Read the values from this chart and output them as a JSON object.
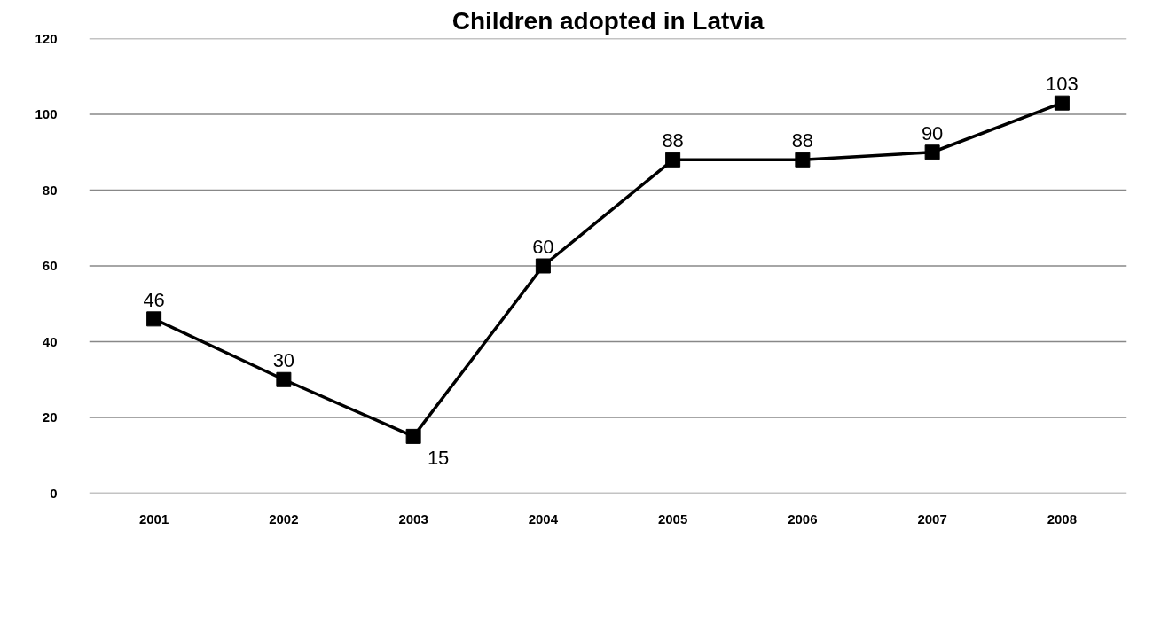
{
  "chart_data": {
    "type": "line",
    "title": "Children adopted in Latvia",
    "categories": [
      "2001",
      "2002",
      "2003",
      "2004",
      "2005",
      "2006",
      "2007",
      "2008"
    ],
    "series": [
      {
        "color": "#000000",
        "values": [
          46,
          30,
          15,
          60,
          88,
          88,
          90,
          103
        ]
      }
    ],
    "ylim": [
      0,
      120
    ],
    "yticks": [
      0,
      20,
      40,
      60,
      80,
      100,
      120
    ],
    "grid": "y",
    "marker": "square",
    "line_style": "solid",
    "data_labels": true
  }
}
